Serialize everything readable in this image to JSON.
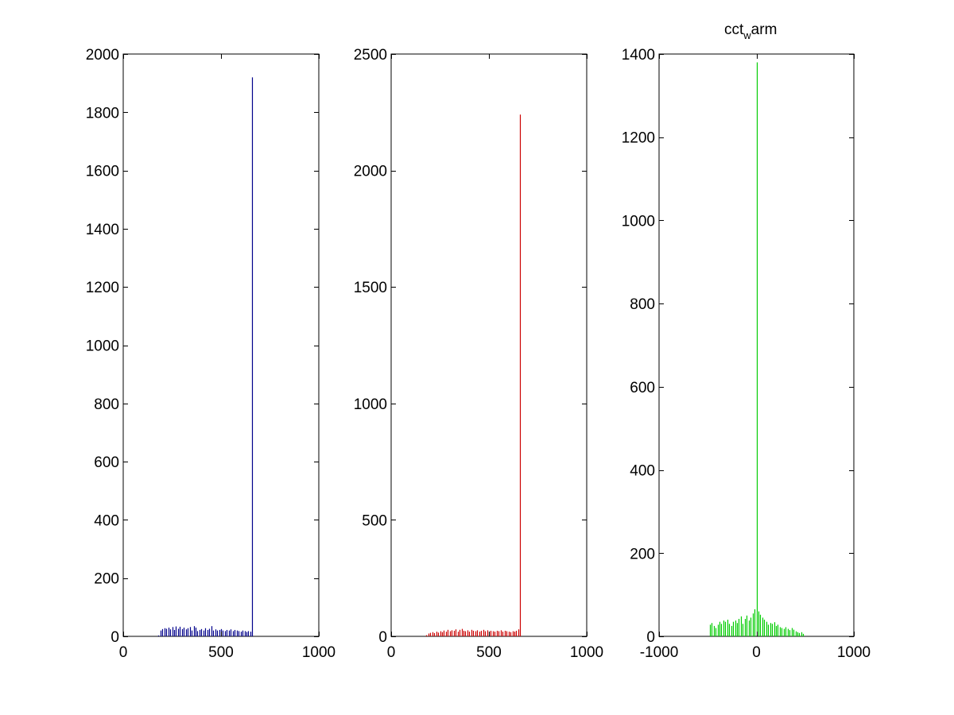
{
  "chart_data": [
    {
      "type": "bar",
      "title": "",
      "xlabel": "",
      "ylabel": "",
      "xlim": [
        0,
        1000
      ],
      "ylim": [
        0,
        2000
      ],
      "x_ticks": [
        0,
        500,
        1000
      ],
      "y_ticks": [
        0,
        200,
        400,
        600,
        800,
        1000,
        1200,
        1400,
        1600,
        1800,
        2000
      ],
      "color": "#00008b",
      "grid": false,
      "x": [
        180,
        190,
        200,
        210,
        220,
        230,
        240,
        250,
        260,
        270,
        280,
        290,
        300,
        310,
        320,
        330,
        340,
        350,
        360,
        370,
        380,
        390,
        400,
        410,
        420,
        430,
        440,
        450,
        460,
        470,
        480,
        490,
        500,
        510,
        520,
        530,
        540,
        550,
        560,
        570,
        580,
        590,
        600,
        610,
        620,
        630,
        640,
        650,
        660
      ],
      "values": [
        3,
        20,
        25,
        28,
        26,
        30,
        24,
        32,
        22,
        34,
        26,
        33,
        25,
        30,
        24,
        28,
        32,
        20,
        35,
        30,
        18,
        22,
        25,
        20,
        28,
        22,
        26,
        35,
        20,
        24,
        20,
        22,
        25,
        20,
        18,
        22,
        20,
        24,
        18,
        22,
        20,
        18,
        16,
        20,
        18,
        15,
        18,
        16,
        1920
      ]
    },
    {
      "type": "bar",
      "title": "",
      "xlabel": "",
      "ylabel": "",
      "xlim": [
        0,
        1000
      ],
      "ylim": [
        0,
        2500
      ],
      "x_ticks": [
        0,
        500,
        1000
      ],
      "y_ticks": [
        0,
        500,
        1000,
        1500,
        2000,
        2500
      ],
      "color": "#cc0000",
      "grid": false,
      "x": [
        180,
        190,
        200,
        210,
        220,
        230,
        240,
        250,
        260,
        270,
        280,
        290,
        300,
        310,
        320,
        330,
        340,
        350,
        360,
        370,
        380,
        390,
        400,
        410,
        420,
        430,
        440,
        450,
        460,
        470,
        480,
        490,
        500,
        510,
        520,
        530,
        540,
        550,
        560,
        570,
        580,
        590,
        600,
        610,
        620,
        630,
        640,
        650,
        660
      ],
      "values": [
        5,
        12,
        15,
        18,
        14,
        20,
        16,
        22,
        18,
        25,
        20,
        28,
        22,
        26,
        24,
        30,
        20,
        28,
        32,
        24,
        22,
        26,
        20,
        28,
        24,
        22,
        26,
        20,
        24,
        28,
        22,
        26,
        20,
        24,
        22,
        20,
        24,
        22,
        26,
        20,
        24,
        22,
        20,
        18,
        22,
        20,
        24,
        30,
        2240
      ]
    },
    {
      "type": "bar",
      "title": "cct_warm",
      "title_main": "cct",
      "title_sub": "w",
      "title_tail": "arm",
      "xlabel": "",
      "ylabel": "",
      "xlim": [
        -1000,
        1000
      ],
      "ylim": [
        0,
        1400
      ],
      "x_ticks": [
        -1000,
        0,
        1000
      ],
      "y_ticks": [
        0,
        200,
        400,
        600,
        800,
        1000,
        1200,
        1400
      ],
      "color": "#00cc00",
      "grid": false,
      "x": [
        -480,
        -460,
        -440,
        -420,
        -400,
        -380,
        -360,
        -340,
        -320,
        -300,
        -280,
        -260,
        -240,
        -220,
        -200,
        -180,
        -160,
        -140,
        -120,
        -100,
        -80,
        -60,
        -40,
        -20,
        0,
        20,
        40,
        60,
        80,
        100,
        120,
        140,
        160,
        180,
        200,
        220,
        240,
        260,
        280,
        300,
        320,
        340,
        360,
        380,
        400,
        420,
        440,
        460,
        480
      ],
      "values": [
        28,
        32,
        25,
        20,
        28,
        35,
        30,
        38,
        35,
        40,
        30,
        25,
        35,
        38,
        32,
        42,
        48,
        30,
        42,
        50,
        38,
        45,
        55,
        65,
        1380,
        60,
        52,
        45,
        40,
        35,
        28,
        32,
        30,
        34,
        25,
        28,
        22,
        20,
        18,
        22,
        18,
        15,
        20,
        16,
        12,
        10,
        8,
        10,
        6
      ]
    }
  ]
}
